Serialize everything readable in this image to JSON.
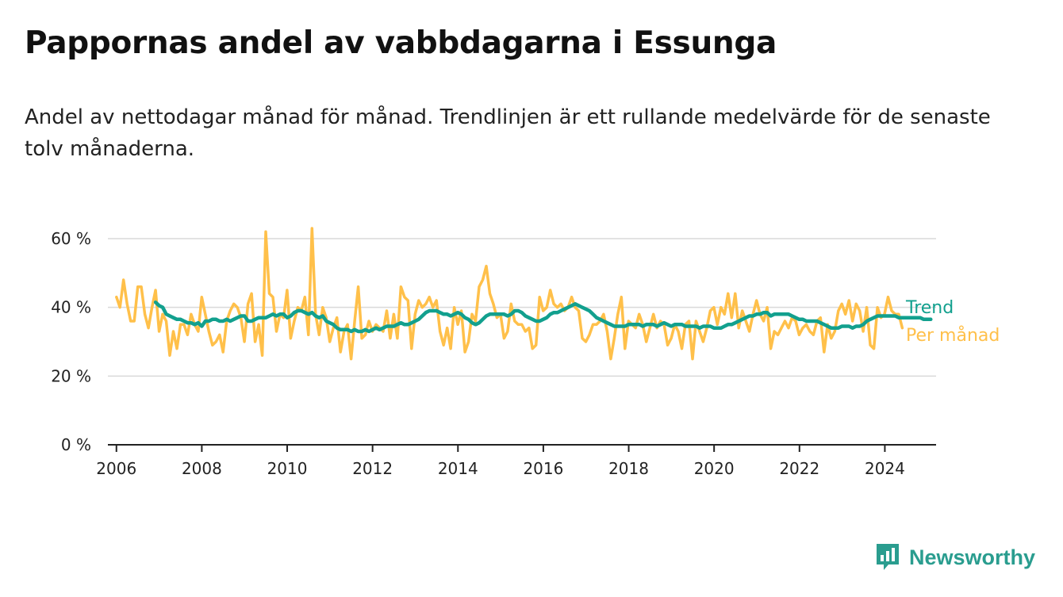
{
  "title": "Pappornas andel av vabbdagarna i Essunga",
  "subtitle": "Andel av nettodagar månad för månad. Trendlinjen är ett rullande medelvärde för de senaste tolv månaderna.",
  "brand": {
    "name": "Newsworthy",
    "logo_icon": "bar-chart-speech-bubble-icon",
    "color": "#2a9d8f"
  },
  "chart_data": {
    "type": "line",
    "title": "Pappornas andel av vabbdagarna i Essunga",
    "xlabel": "",
    "ylabel": "",
    "xlim": [
      2005.8,
      2025.2
    ],
    "ylim": [
      0,
      60
    ],
    "grid": true,
    "legend_placement": "right-end-of-lines",
    "x_ticks": [
      2006,
      2008,
      2010,
      2012,
      2014,
      2016,
      2018,
      2020,
      2022,
      2024
    ],
    "y_ticks": [
      0,
      20,
      40,
      60
    ],
    "y_tick_labels": [
      "0 %",
      "20 %",
      "40 %",
      "60 %"
    ],
    "series": [
      {
        "name": "Per månad",
        "color": "#ffc04a",
        "x_start": 2006.0,
        "step": 0.0833,
        "values": [
          43,
          40,
          48,
          41,
          36,
          36,
          46,
          46,
          38,
          34,
          40,
          45,
          33,
          38,
          36,
          26,
          33,
          28,
          35,
          35,
          32,
          38,
          35,
          33,
          43,
          38,
          33,
          29,
          30,
          32,
          27,
          36,
          39,
          41,
          40,
          37,
          30,
          41,
          44,
          30,
          35,
          26,
          62,
          44,
          43,
          33,
          38,
          37,
          45,
          31,
          36,
          40,
          39,
          43,
          32,
          63,
          38,
          32,
          40,
          37,
          30,
          34,
          37,
          27,
          33,
          35,
          25,
          36,
          46,
          31,
          32,
          36,
          33,
          35,
          34,
          33,
          39,
          31,
          38,
          31,
          46,
          43,
          42,
          28,
          38,
          42,
          40,
          41,
          43,
          40,
          42,
          33,
          29,
          34,
          28,
          40,
          35,
          39,
          27,
          30,
          38,
          36,
          46,
          48,
          52,
          44,
          41,
          37,
          38,
          31,
          33,
          41,
          36,
          35,
          35,
          33,
          34,
          28,
          29,
          43,
          39,
          40,
          45,
          41,
          40,
          41,
          39,
          40,
          43,
          40,
          39,
          31,
          30,
          32,
          35,
          35,
          36,
          38,
          33,
          25,
          31,
          38,
          43,
          28,
          36,
          35,
          34,
          38,
          35,
          30,
          34,
          38,
          34,
          36,
          35,
          29,
          31,
          35,
          33,
          28,
          35,
          36,
          25,
          36,
          33,
          30,
          34,
          39,
          40,
          35,
          40,
          38,
          44,
          37,
          44,
          34,
          39,
          36,
          33,
          38,
          42,
          38,
          36,
          40,
          28,
          33,
          32,
          34,
          36,
          34,
          37,
          36,
          32,
          34,
          35,
          33,
          32,
          36,
          37,
          27,
          35,
          31,
          33,
          39,
          41,
          38,
          42,
          36,
          41,
          39,
          33,
          40,
          29,
          28,
          40,
          37,
          38,
          43,
          39,
          38,
          38,
          34
        ]
      },
      {
        "name": "Trend",
        "color": "#12a08e",
        "x_start": 2006.917,
        "step": 0.0833,
        "values": [
          41.5,
          40.5,
          40,
          38,
          37.5,
          37,
          36.5,
          36.5,
          36,
          35.5,
          35.5,
          35,
          35.5,
          34.5,
          36,
          36,
          36.5,
          36.5,
          36,
          36,
          36.5,
          36,
          36.5,
          37,
          37.5,
          37.5,
          36,
          36,
          36.5,
          37,
          37,
          37,
          37.5,
          38,
          37.5,
          38,
          38,
          37,
          37.5,
          38.5,
          39,
          39,
          38.5,
          38,
          38.5,
          37.5,
          37,
          37.5,
          36,
          35.5,
          35,
          34,
          33.5,
          33.5,
          33.5,
          33,
          33.5,
          33,
          33,
          33.5,
          33,
          33.5,
          34,
          33.5,
          34,
          34.5,
          34.5,
          34.5,
          35,
          35.5,
          35,
          35,
          35.5,
          36,
          36.5,
          37.5,
          38.5,
          39,
          39,
          39,
          38.5,
          38,
          38,
          37.5,
          38,
          38.5,
          38,
          37,
          36.5,
          35.5,
          35,
          35.5,
          36.5,
          37.5,
          38,
          38,
          38,
          38,
          38,
          37.5,
          38,
          39,
          39,
          38.5,
          37.5,
          37,
          36.5,
          36,
          36,
          36.5,
          37,
          38,
          38.5,
          38.5,
          39,
          39.5,
          40,
          40.5,
          41,
          40.5,
          40,
          39.5,
          39,
          38,
          37,
          36.5,
          36,
          35.5,
          35,
          34.5,
          34.5,
          34.5,
          34.5,
          35,
          35,
          35,
          35,
          34.5,
          35,
          35,
          35,
          34.5,
          35,
          35.5,
          35,
          34.5,
          35,
          35,
          35,
          34.5,
          34.5,
          34.5,
          34.5,
          34,
          34.5,
          34.5,
          34.5,
          34,
          34,
          34,
          34.5,
          35,
          35,
          35.5,
          36,
          36.5,
          37,
          37.5,
          37.5,
          38,
          38,
          38.5,
          38.5,
          37.5,
          38,
          38,
          38,
          38,
          38,
          37.5,
          37,
          36.5,
          36.5,
          36,
          36,
          36,
          36,
          35.5,
          35,
          34.5,
          34,
          34,
          34,
          34.5,
          34.5,
          34.5,
          34,
          34.5,
          34.5,
          35,
          36,
          36.5,
          37,
          37.5,
          37.5,
          37.5,
          37.5,
          37.5,
          37.5,
          37,
          37,
          37,
          37,
          37,
          37,
          37,
          36.5,
          36.5,
          36.5
        ]
      }
    ]
  }
}
